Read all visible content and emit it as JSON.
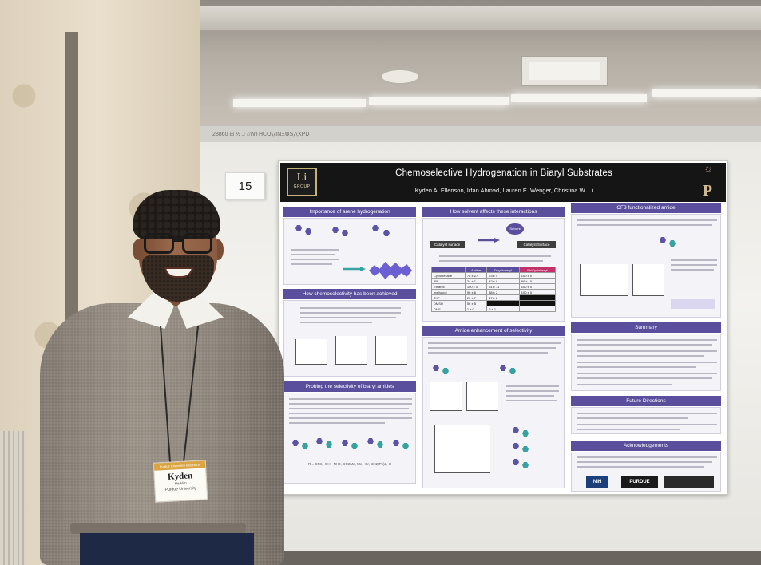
{
  "scene": {
    "booth_number": "15",
    "board_strip_text": "28860 ⊞ ½ ⅃ ⌂WTHCO⋁INΞ⋓S⋀XPD"
  },
  "poster": {
    "title": "Chemoselective Hydrogenation in Biaryl Substrates",
    "authors": "Kyden A. Ellenson, Irfan Ahmad, Lauren E. Wenger, Christina W. Li",
    "logo_left_big": "Li",
    "logo_left_small": "GROUP",
    "logo_right": "P",
    "sections": {
      "importance": "Importance of arene hydrogenation",
      "achieved": "How chemoselectivity has been achieved",
      "probing": "Probing the selectivity of biaryl amides",
      "solvent": "How solvent affects these interactions",
      "amide": "Amide enhancement of selectivity",
      "cf3": "CF3 functionalized amide",
      "summary": "Summary",
      "future": "Future Directions",
      "ack": "Acknowledgements"
    },
    "solvent_labels": {
      "catalyst_surface_left": "Catalyst surface",
      "catalyst_surface_right": "Catalyst Surface",
      "solvent_bubble": "Solvent"
    },
    "probing_formula": "R = CF3, -OH, -NH2, CO2Me, Me, -Br, CH2(Ph)2, H",
    "table": {
      "headers": [
        "",
        "Aniline",
        "Dicyclohexyl",
        "Ph/Cyclohexyl"
      ],
      "rows": [
        [
          "Cyclohexane",
          "78 ± 27",
          "23 ± 4",
          "100 ± 0"
        ],
        [
          "IPA",
          "24 ± 1",
          "42 ± 8",
          "90 ± 10"
        ],
        [
          "Ethanol",
          "100 ± 0",
          "51 ± 11",
          "100 ± 0"
        ],
        [
          "methanol",
          "96 ± 6",
          "88 ± 2",
          "100 ± 0"
        ],
        [
          "THF",
          "20 ± 7",
          "47 ± 2",
          ""
        ],
        [
          "DMSO",
          "56 ± 5",
          "",
          ""
        ],
        [
          "DMF",
          "1 ± 0",
          "6 ± 1",
          ""
        ]
      ]
    },
    "logos": {
      "nih": "NIH",
      "purdue": "PURDUE"
    }
  },
  "person": {
    "badge_header": "Purdue Chemistry Research",
    "badge_name": "Kyden",
    "badge_pronouns": "He/Him",
    "badge_org": "Purdue University"
  }
}
